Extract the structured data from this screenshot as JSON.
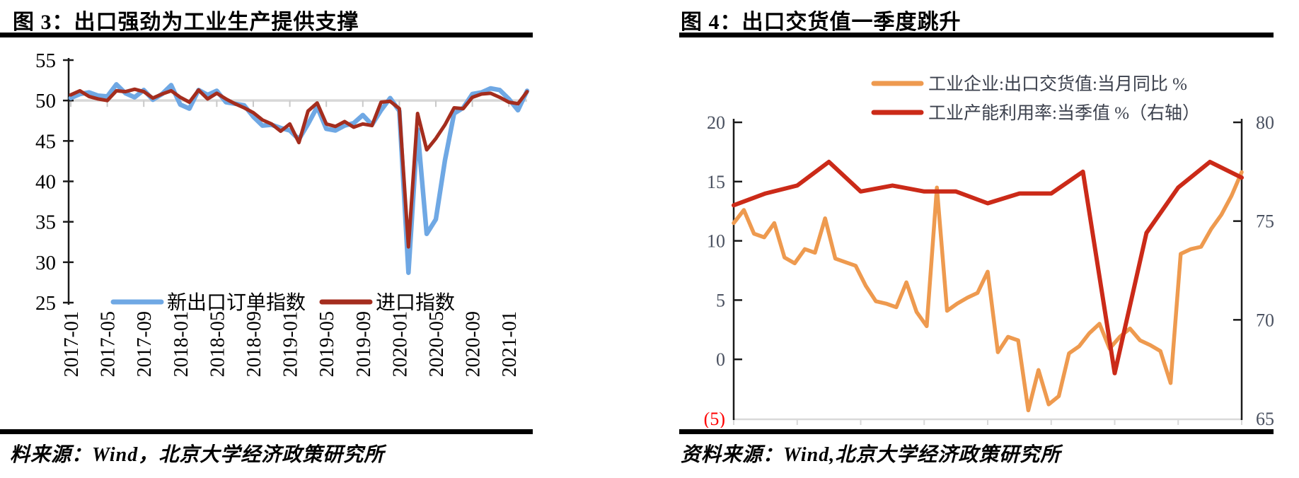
{
  "panels": [
    {
      "title": "图 3：出口强劲为工业生产提供支撑",
      "source": "料来源：Wind，北京大学经济政策研究所"
    },
    {
      "title": "图 4：出口交货值一季度跳升",
      "source": "资料来源：Wind,北京大学经济政策研究所"
    }
  ],
  "chart_data": [
    {
      "type": "line",
      "title": "图 3：出口强劲为工业生产提供支撑",
      "x_start": "2017-01",
      "x_end": "2021-03",
      "x_freq": "monthly",
      "x_tick_labels": [
        "2017-01",
        "2017-05",
        "2017-09",
        "2018-01",
        "2018-05",
        "2018-09",
        "2019-01",
        "2019-05",
        "2019-09",
        "2020-01",
        "2020-05",
        "2020-09",
        "2021-01"
      ],
      "ylim": [
        25,
        55
      ],
      "yticks": [
        55,
        50,
        45,
        40,
        35,
        30,
        25
      ],
      "axis_cross_at": 50,
      "gridline_color": "#d8d8d8",
      "legend_position": "bottom-inside",
      "series": [
        {
          "name": "新出口订单指数",
          "color": "#6fa8e4",
          "values": [
            50.3,
            50.8,
            51.0,
            50.6,
            50.5,
            52.0,
            50.9,
            50.4,
            51.3,
            50.1,
            50.8,
            51.9,
            49.5,
            49.0,
            51.3,
            50.7,
            51.2,
            49.8,
            49.6,
            49.4,
            48.0,
            46.9,
            47.0,
            46.6,
            46.3,
            45.2,
            47.1,
            49.2,
            46.5,
            46.3,
            46.9,
            47.2,
            48.2,
            47.0,
            48.8,
            50.3,
            48.7,
            28.7,
            46.4,
            33.5,
            35.3,
            42.6,
            48.4,
            49.1,
            50.8,
            51.0,
            51.5,
            51.3,
            50.2,
            48.8,
            51.2
          ]
        },
        {
          "name": "进口指数",
          "color": "#a42d1e",
          "values": [
            50.7,
            51.2,
            50.5,
            50.2,
            50.0,
            51.2,
            51.1,
            51.4,
            51.1,
            50.3,
            50.8,
            51.2,
            50.4,
            49.8,
            51.3,
            50.2,
            50.9,
            50.2,
            49.6,
            49.1,
            48.5,
            47.6,
            47.1,
            46.2,
            47.1,
            44.8,
            48.7,
            49.7,
            47.1,
            46.8,
            47.4,
            46.7,
            47.1,
            46.9,
            49.8,
            49.9,
            49.0,
            31.9,
            48.4,
            43.9,
            45.3,
            47.0,
            49.1,
            49.0,
            50.4,
            50.8,
            50.9,
            50.4,
            49.8,
            49.6,
            51.1
          ]
        }
      ]
    },
    {
      "type": "line",
      "title": "图 4：出口交货值一季度跳升",
      "x_start": "2017-01",
      "x_end": "2021-03",
      "left_axis": {
        "lim": [
          -5,
          20
        ],
        "ticks": [
          "20",
          "15",
          "10",
          "5",
          "0",
          "(5)"
        ],
        "tick_color": "#4a5160",
        "negative_tick_color": "#ff0000"
      },
      "right_axis": {
        "lim": [
          65,
          80
        ],
        "ticks": [
          "80",
          "75",
          "70",
          "65"
        ],
        "tick_color": "#4a5160"
      },
      "legend_position": "top",
      "series": [
        {
          "name": "工业企业:出口交货值:当月同比 %",
          "axis": "left",
          "freq": "monthly",
          "color": "#ee9a4f",
          "values": [
            11.5,
            12.6,
            10.6,
            10.3,
            11.5,
            8.6,
            8.1,
            9.3,
            9.0,
            11.9,
            8.5,
            8.2,
            7.9,
            6.2,
            4.9,
            4.7,
            4.4,
            6.5,
            4.0,
            2.8,
            14.5,
            4.1,
            4.7,
            5.2,
            5.6,
            7.4,
            0.6,
            1.9,
            1.6,
            -4.3,
            -0.9,
            -3.8,
            -3.1,
            0.5,
            1.1,
            2.2,
            3.0,
            0.9,
            1.9,
            2.6,
            1.6,
            1.2,
            0.7,
            -2.0,
            8.9,
            9.3,
            9.5,
            11.0,
            12.2,
            13.8,
            15.8
          ]
        },
        {
          "name": "工业产能利用率:当季值 %（右轴）",
          "axis": "right",
          "freq": "quarterly",
          "color": "#cb2a18",
          "values": [
            75.8,
            76.4,
            76.8,
            78.0,
            76.5,
            76.8,
            76.5,
            76.5,
            75.9,
            76.4,
            76.4,
            77.5,
            67.3,
            74.4,
            76.7,
            78.0,
            77.2
          ]
        }
      ]
    }
  ]
}
